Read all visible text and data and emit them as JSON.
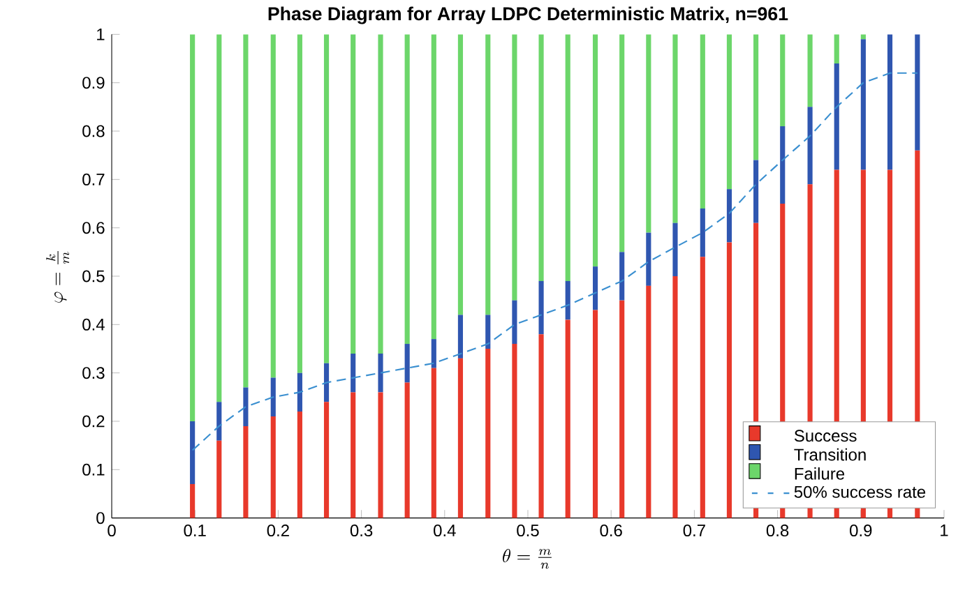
{
  "chart_data": {
    "type": "bar",
    "stacked": true,
    "title": "Phase Diagram for Array LDPC Deterministic Matrix, n=961",
    "xlabel": "\\theta=\\frac{m}{n}",
    "ylabel": "\\varphi=\\frac{k}{m}",
    "x": [
      0.097,
      0.129,
      0.161,
      0.194,
      0.226,
      0.258,
      0.29,
      0.323,
      0.355,
      0.387,
      0.419,
      0.452,
      0.484,
      0.516,
      0.548,
      0.581,
      0.613,
      0.645,
      0.677,
      0.71,
      0.742,
      0.774,
      0.806,
      0.839,
      0.871,
      0.903,
      0.935,
      0.968
    ],
    "series": [
      {
        "name": "Success",
        "color": "#e8392b",
        "values": [
          0.07,
          0.16,
          0.19,
          0.21,
          0.22,
          0.24,
          0.26,
          0.26,
          0.28,
          0.31,
          0.33,
          0.35,
          0.36,
          0.38,
          0.41,
          0.43,
          0.45,
          0.48,
          0.5,
          0.54,
          0.57,
          0.61,
          0.65,
          0.69,
          0.72,
          0.72,
          0.72,
          0.76
        ]
      },
      {
        "name": "Transition",
        "color": "#2f56b0",
        "values": [
          0.13,
          0.08,
          0.08,
          0.08,
          0.08,
          0.08,
          0.08,
          0.08,
          0.08,
          0.06,
          0.09,
          0.07,
          0.09,
          0.11,
          0.08,
          0.09,
          0.1,
          0.11,
          0.11,
          0.1,
          0.11,
          0.13,
          0.16,
          0.16,
          0.22,
          0.27,
          0.28,
          0.24
        ]
      },
      {
        "name": "Failure",
        "color": "#6cd66a",
        "values": [
          0.8,
          0.76,
          0.73,
          0.71,
          0.7,
          0.68,
          0.66,
          0.66,
          0.64,
          0.63,
          0.58,
          0.58,
          0.55,
          0.51,
          0.51,
          0.48,
          0.45,
          0.41,
          0.39,
          0.36,
          0.32,
          0.26,
          0.19,
          0.15,
          0.06,
          0.01,
          0,
          0
        ]
      },
      {
        "name": "50% success rate",
        "type": "line",
        "line_style": "dashed",
        "color": "#3a8fd0",
        "x": [
          0.097,
          0.129,
          0.161,
          0.194,
          0.226,
          0.258,
          0.323,
          0.387,
          0.452,
          0.484,
          0.548,
          0.613,
          0.645,
          0.677,
          0.71,
          0.742,
          0.774,
          0.806,
          0.839,
          0.871,
          0.903,
          0.935,
          0.968
        ],
        "values": [
          0.14,
          0.19,
          0.23,
          0.25,
          0.26,
          0.28,
          0.3,
          0.32,
          0.36,
          0.4,
          0.44,
          0.49,
          0.53,
          0.56,
          0.59,
          0.63,
          0.69,
          0.74,
          0.79,
          0.85,
          0.9,
          0.92,
          0.92
        ]
      }
    ],
    "xlim": [
      0,
      1
    ],
    "ylim": [
      0,
      1
    ],
    "xticks": [
      0,
      0.1,
      0.2,
      0.3,
      0.4,
      0.5,
      0.6,
      0.7,
      0.8,
      0.9,
      1
    ],
    "yticks": [
      0,
      0.1,
      0.2,
      0.3,
      0.4,
      0.5,
      0.6,
      0.7,
      0.8,
      0.9,
      1
    ],
    "grid": false,
    "legend": "bottom right"
  }
}
